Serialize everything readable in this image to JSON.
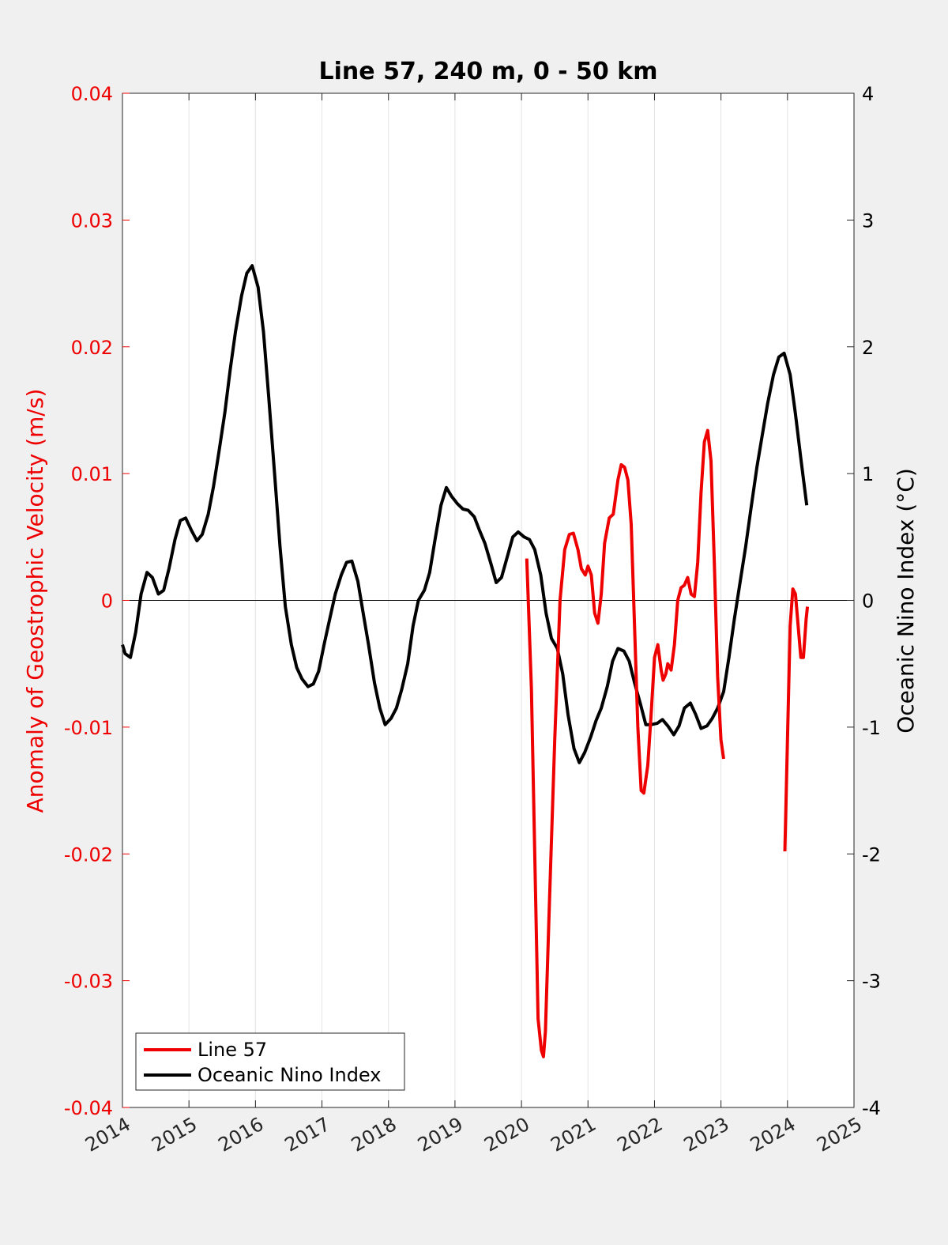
{
  "chart_data": {
    "type": "line",
    "title": "Line 57, 240 m, 0 - 50 km",
    "ylabel_left": "Anomaly of Geostrophic Velocity (m/s)",
    "ylabel_right": "Oceanic Nino Index (°C)",
    "xlim": [
      2014,
      2025
    ],
    "ylim_left": [
      -0.04,
      0.04
    ],
    "ylim_right": [
      -4,
      4
    ],
    "x_ticks": [
      "2014",
      "2015",
      "2016",
      "2017",
      "2018",
      "2019",
      "2020",
      "2021",
      "2022",
      "2023",
      "2024",
      "2025"
    ],
    "y_left_ticks": [
      "-0.04",
      "-0.03",
      "-0.02",
      "-0.01",
      "0",
      "0.01",
      "0.02",
      "0.03",
      "0.04"
    ],
    "y_right_ticks": [
      "-4",
      "-3",
      "-2",
      "-1",
      "0",
      "1",
      "2",
      "3",
      "4"
    ],
    "grid": "vertical",
    "zero_line": true,
    "legend_position": "bottom-left",
    "colors": {
      "line57": "#ee0000",
      "oni": "#000000",
      "left_axis": "#ee0000",
      "right_axis": "#000000"
    },
    "series": [
      {
        "name": "Line 57",
        "axis": "left",
        "segments": [
          {
            "x": [
              2020.08,
              2020.15,
              2020.2,
              2020.25,
              2020.3,
              2020.33,
              2020.36,
              2020.42,
              2020.5,
              2020.58,
              2020.65,
              2020.72,
              2020.78,
              2020.85,
              2020.9,
              2020.96,
              2021.0,
              2021.05,
              2021.1,
              2021.15,
              2021.2,
              2021.25,
              2021.32,
              2021.38,
              2021.45,
              2021.5,
              2021.55,
              2021.6,
              2021.65,
              2021.7,
              2021.75,
              2021.8,
              2021.84,
              2021.9,
              2021.95,
              2022.0,
              2022.05,
              2022.1,
              2022.13,
              2022.17,
              2022.2,
              2022.25,
              2022.3,
              2022.35,
              2022.4,
              2022.45,
              2022.5,
              2022.55,
              2022.6,
              2022.65,
              2022.7,
              2022.75,
              2022.8,
              2022.85,
              2022.9,
              2022.95,
              2023.0,
              2023.04
            ],
            "y": [
              0.0033,
              -0.007,
              -0.02,
              -0.033,
              -0.0355,
              -0.036,
              -0.034,
              -0.024,
              -0.011,
              0.0,
              0.004,
              0.0052,
              0.0053,
              0.004,
              0.0025,
              0.002,
              0.0027,
              0.002,
              -0.001,
              -0.0018,
              0.0005,
              0.0045,
              0.0065,
              0.0068,
              0.0095,
              0.0107,
              0.0105,
              0.0095,
              0.006,
              -0.002,
              -0.01,
              -0.015,
              -0.0152,
              -0.013,
              -0.009,
              -0.0045,
              -0.0035,
              -0.0055,
              -0.0063,
              -0.0058,
              -0.005,
              -0.0055,
              -0.0035,
              0.0,
              0.001,
              0.0012,
              0.0018,
              0.0005,
              0.0003,
              0.003,
              0.0085,
              0.0125,
              0.0134,
              0.011,
              0.003,
              -0.006,
              -0.011,
              -0.0125
            ]
          },
          {
            "x": [
              2023.96,
              2024.0,
              2024.04,
              2024.08,
              2024.12,
              2024.16,
              2024.2,
              2024.24,
              2024.28,
              2024.3
            ],
            "y": [
              -0.0198,
              -0.011,
              -0.002,
              0.0009,
              0.0005,
              -0.002,
              -0.0045,
              -0.0045,
              -0.0015,
              -0.0005
            ]
          }
        ]
      },
      {
        "name": "Oceanic Nino Index",
        "axis": "right",
        "segments": [
          {
            "x": [
              2014.0,
              2014.04,
              2014.12,
              2014.2,
              2014.28,
              2014.37,
              2014.45,
              2014.54,
              2014.62,
              2014.7,
              2014.79,
              2014.87,
              2014.95,
              2015.04,
              2015.12,
              2015.2,
              2015.29,
              2015.37,
              2015.45,
              2015.54,
              2015.62,
              2015.7,
              2015.79,
              2015.87,
              2015.95,
              2016.04,
              2016.12,
              2016.2,
              2016.29,
              2016.37,
              2016.45,
              2016.54,
              2016.62,
              2016.7,
              2016.79,
              2016.87,
              2016.95,
              2017.04,
              2017.12,
              2017.2,
              2017.29,
              2017.37,
              2017.45,
              2017.54,
              2017.62,
              2017.7,
              2017.79,
              2017.87,
              2017.95,
              2018.04,
              2018.12,
              2018.2,
              2018.29,
              2018.37,
              2018.45,
              2018.54,
              2018.62,
              2018.7,
              2018.79,
              2018.87,
              2018.95,
              2019.04,
              2019.12,
              2019.2,
              2019.29,
              2019.37,
              2019.45,
              2019.54,
              2019.62,
              2019.7,
              2019.79,
              2019.87,
              2019.95,
              2020.04,
              2020.12,
              2020.2,
              2020.29,
              2020.37,
              2020.45,
              2020.54,
              2020.62,
              2020.7,
              2020.79,
              2020.87,
              2020.95,
              2021.04,
              2021.12,
              2021.2,
              2021.29,
              2021.37,
              2021.45,
              2021.54,
              2021.62,
              2021.7,
              2021.79,
              2021.87,
              2021.95,
              2022.04,
              2022.12,
              2022.2,
              2022.29,
              2022.37,
              2022.45,
              2022.54,
              2022.62,
              2022.7,
              2022.79,
              2022.87,
              2022.95,
              2023.04,
              2023.12,
              2023.2,
              2023.29,
              2023.37,
              2023.45,
              2023.54,
              2023.62,
              2023.7,
              2023.79,
              2023.87,
              2023.95,
              2024.04,
              2024.12,
              2024.2,
              2024.29
            ],
            "y": [
              -0.35,
              -0.42,
              -0.45,
              -0.25,
              0.05,
              0.22,
              0.18,
              0.05,
              0.08,
              0.25,
              0.48,
              0.63,
              0.65,
              0.55,
              0.47,
              0.52,
              0.68,
              0.9,
              1.17,
              1.48,
              1.82,
              2.12,
              2.4,
              2.58,
              2.64,
              2.47,
              2.12,
              1.6,
              0.98,
              0.42,
              -0.05,
              -0.35,
              -0.53,
              -0.62,
              -0.68,
              -0.66,
              -0.56,
              -0.33,
              -0.14,
              0.05,
              0.2,
              0.3,
              0.31,
              0.15,
              -0.1,
              -0.35,
              -0.65,
              -0.85,
              -0.98,
              -0.93,
              -0.85,
              -0.7,
              -0.5,
              -0.2,
              0.0,
              0.08,
              0.22,
              0.48,
              0.75,
              0.89,
              0.82,
              0.76,
              0.72,
              0.71,
              0.66,
              0.55,
              0.45,
              0.29,
              0.14,
              0.18,
              0.35,
              0.5,
              0.54,
              0.5,
              0.48,
              0.4,
              0.2,
              -0.1,
              -0.3,
              -0.38,
              -0.58,
              -0.9,
              -1.17,
              -1.28,
              -1.2,
              -1.08,
              -0.95,
              -0.85,
              -0.68,
              -0.48,
              -0.38,
              -0.4,
              -0.48,
              -0.65,
              -0.82,
              -0.98,
              -0.98,
              -0.97,
              -0.94,
              -0.99,
              -1.06,
              -0.99,
              -0.85,
              -0.81,
              -0.9,
              -1.01,
              -0.99,
              -0.93,
              -0.85,
              -0.72,
              -0.45,
              -0.15,
              0.15,
              0.42,
              0.72,
              1.05,
              1.3,
              1.55,
              1.78,
              1.92,
              1.95,
              1.78,
              1.47,
              1.12,
              0.75
            ]
          }
        ]
      }
    ]
  }
}
